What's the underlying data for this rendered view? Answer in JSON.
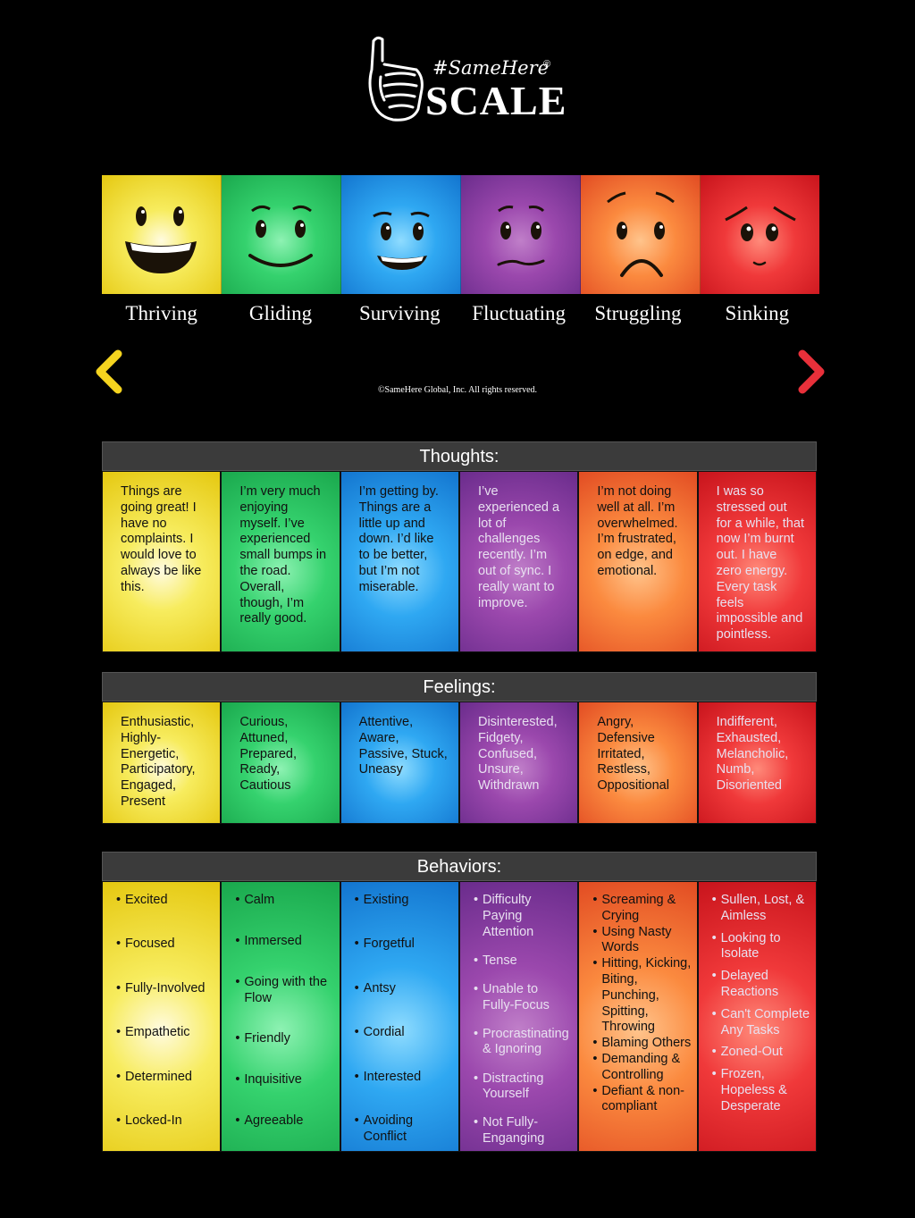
{
  "logo": {
    "hashtag": "#SameHere",
    "registered": "®",
    "scale_word": "SCALE"
  },
  "levels": [
    "Thriving",
    "Gliding",
    "Surviving",
    "Fluctuating",
    "Struggling",
    "Sinking"
  ],
  "colors": {
    "thriving": "#f5e43a",
    "gliding": "#2fcf6a",
    "surviving": "#1e96ea",
    "fluctuating": "#8e3fa6",
    "struggling": "#f5732f",
    "sinking": "#e8232a",
    "header": "#3b3b3b"
  },
  "copyright": "©SameHere Global, Inc. All rights reserved.",
  "thoughts": {
    "title": "Thoughts:",
    "items": [
      "Things are going great! I have no complaints. I would love to always be like this.",
      "I’m very much enjoying myself. I’ve experienced small bumps in the road. Overall, though, I’m really good.",
      "I’m getting by. Things are a little up and down. I’d like to be better, but I’m not miserable.",
      "I’ve experienced a lot of challenges recently. I’m out of sync. I really want to improve.",
      "I’m not doing well at all. I’m overwhelmed. I’m frustrated, on edge, and emotional.",
      "I was so stressed out for a while, that now I’m burnt out. I have zero energy. Every task feels impossible and pointless."
    ]
  },
  "feelings": {
    "title": "Feelings:",
    "items": [
      "Enthusiastic, Highly-Energetic, Participatory, Engaged, Present",
      "Curious, Attuned, Prepared, Ready, Cautious",
      "Attentive, Aware, Passive, Stuck, Uneasy",
      "Disinterested, Fidgety, Confused, Unsure, Withdrawn",
      "Angry, Defensive Irritated, Restless, Oppositional",
      "Indifferent, Exhausted, Melancholic, Numb, Disoriented"
    ]
  },
  "behaviors": {
    "title": "Behaviors:",
    "columns": [
      [
        "Excited",
        "Focused",
        "Fully-Involved",
        "Empathetic",
        "Determined",
        "Locked-In"
      ],
      [
        "Calm",
        "Immersed",
        "Going with the Flow",
        "Friendly",
        "Inquisitive",
        "Agreeable"
      ],
      [
        "Existing",
        "Forgetful",
        "Antsy",
        "Cordial",
        "Interested",
        "Avoiding Conflict"
      ],
      [
        "Difficulty Paying Attention",
        "Tense",
        "Unable to Fully-Focus",
        "Procrastinating & Ignoring",
        "Distracting Yourself",
        "Not Fully-Enganging"
      ],
      [
        "Screaming & Crying",
        "Using Nasty Words",
        "Hitting, Kicking, Biting, Punching, Spitting, Throwing",
        "Blaming Others",
        "Demanding & Controlling",
        "Defiant & non-compliant"
      ],
      [
        "Sullen, Lost, & Aimless",
        "Looking to Isolate",
        "Delayed Reactions",
        "Can't Complete Any Tasks",
        "Zoned-Out",
        "Frozen, Hopeless & Desperate"
      ]
    ]
  }
}
